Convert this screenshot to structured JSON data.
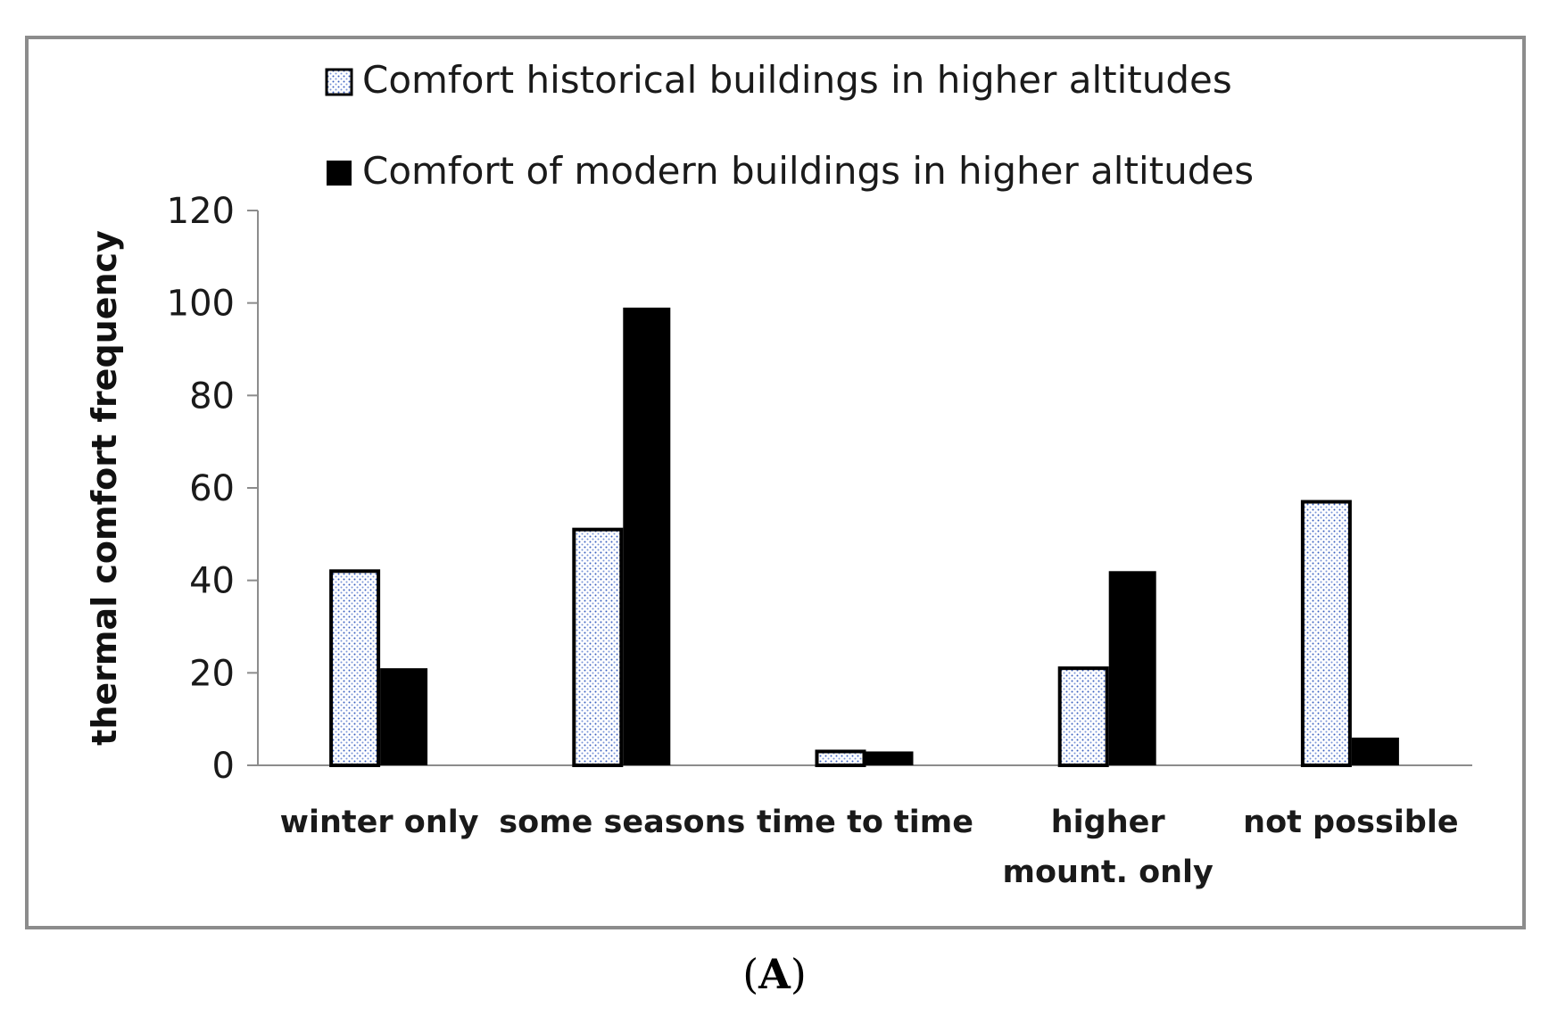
{
  "chart_data": {
    "type": "bar",
    "categories": [
      [
        "winter only"
      ],
      [
        "some seasons"
      ],
      [
        "time to time"
      ],
      [
        "higher",
        "mount.  only"
      ],
      [
        "not possible"
      ]
    ],
    "series": [
      {
        "name": "Comfort historical buildings in higher altitudes",
        "values": [
          42,
          51,
          3,
          21,
          57
        ],
        "fill": "dotted",
        "dot_color": "#3a5fbf"
      },
      {
        "name": "Comfort of modern buildings in higher altitudes",
        "values": [
          21,
          99,
          3,
          42,
          6
        ],
        "fill": "solid",
        "color": "#000000"
      }
    ],
    "ylabel": "thermal comfort frequency",
    "ylim": [
      0,
      120
    ],
    "yticks": [
      0,
      20,
      40,
      60,
      80,
      100,
      120
    ],
    "legend_position": "top",
    "grid": false
  },
  "caption": {
    "open": "(",
    "letter": "A",
    "close": ")"
  }
}
